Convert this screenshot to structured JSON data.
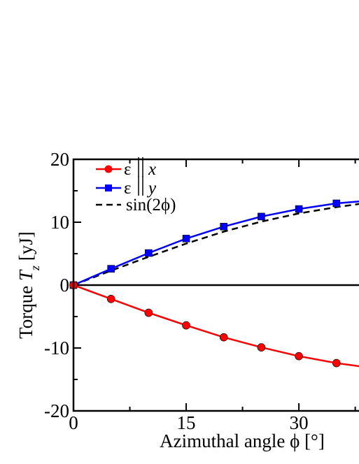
{
  "chart_data": {
    "type": "line",
    "xlabel_text": "Azimuthal angle ",
    "xlabel_symbol": "ϕ",
    "xlabel_unit": "[°]",
    "ylabel_text": "Torque ",
    "ylabel_symbol": "T",
    "ylabel_sub": "z",
    "ylabel_unit": "[yJ]",
    "xlim": [
      0,
      38
    ],
    "ylim": [
      -20,
      20
    ],
    "x_ticks": [
      0,
      15,
      30
    ],
    "x_tick_labels": [
      "0",
      "15",
      "30"
    ],
    "y_ticks": [
      -20,
      -10,
      0,
      10,
      20
    ],
    "y_tick_labels": [
      "-20",
      "-10",
      "0",
      "10",
      "20"
    ],
    "grid": false,
    "legend_position": "top-left",
    "series": [
      {
        "legend_prefix": "ε",
        "legend_var": "x",
        "color": "#ff0000",
        "marker": "circle",
        "style": "solid",
        "x": [
          0,
          5,
          10,
          15,
          20,
          25,
          30,
          35,
          38
        ],
        "y": [
          0,
          -2.2,
          -4.4,
          -6.4,
          -8.3,
          -9.9,
          -11.3,
          -12.4,
          -12.9
        ],
        "markers_x": [
          0,
          5,
          10,
          15,
          20,
          25,
          30,
          35
        ],
        "markers_y": [
          0,
          -2.2,
          -4.4,
          -6.4,
          -8.3,
          -9.9,
          -11.3,
          -12.4
        ]
      },
      {
        "legend_prefix": "ε",
        "legend_var": "y",
        "color": "#0000ff",
        "marker": "square",
        "style": "solid",
        "x": [
          0,
          5,
          10,
          15,
          20,
          25,
          30,
          35,
          38
        ],
        "y": [
          0,
          2.6,
          5.1,
          7.4,
          9.3,
          10.9,
          12.1,
          13.0,
          13.3
        ],
        "markers_x": [
          0,
          5,
          10,
          15,
          20,
          25,
          30,
          35
        ],
        "markers_y": [
          0,
          2.6,
          5.1,
          7.4,
          9.3,
          10.9,
          12.1,
          13.0
        ]
      },
      {
        "legend_label": "sin(2ϕ)",
        "color": "#000000",
        "marker": "none",
        "style": "dashed",
        "x": [
          0,
          5,
          10,
          15,
          20,
          25,
          30,
          35,
          38
        ],
        "y": [
          0,
          2.3,
          4.5,
          6.6,
          8.5,
          10.1,
          11.4,
          12.4,
          12.9
        ]
      }
    ],
    "zero_line": true
  }
}
